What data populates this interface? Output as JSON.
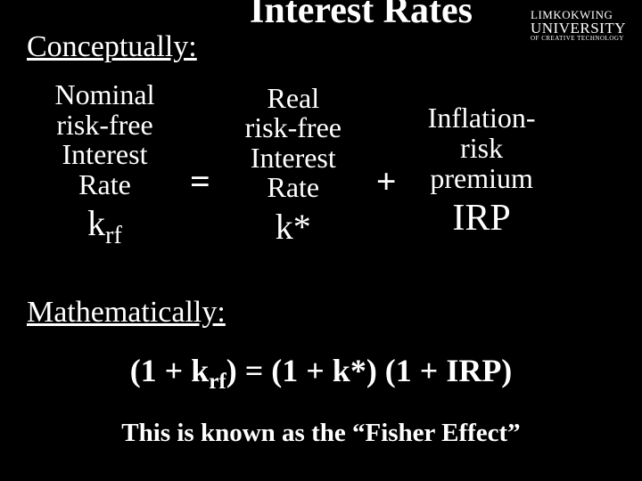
{
  "title": {
    "text": "Interest Rates",
    "fontsize": 42,
    "color": "#ffffff"
  },
  "logo": {
    "line1": "LIMKOKWING",
    "line1_fontsize": 13,
    "line2": "UNIVERSITY",
    "line2_fontsize": 17,
    "line3": "OF CREATIVE TECHNOLOGY",
    "line3_fontsize": 7,
    "color": "#ffffff"
  },
  "conceptually": {
    "text": "Conceptually:",
    "fontsize": 34,
    "color": "#ffffff"
  },
  "equation": {
    "nominal": {
      "l1": "Nominal",
      "l2": "risk-free",
      "l3": "Interest",
      "l4": "Rate",
      "symbol_prefix": "k",
      "symbol_sub": "rf",
      "fontsize": 32,
      "symbol_fontsize": 40
    },
    "equals": "=",
    "real": {
      "l1": "Real",
      "l2": "risk-free",
      "l3": "Interest",
      "l4": "Rate",
      "symbol": "k*",
      "fontsize": 32,
      "symbol_fontsize": 40
    },
    "plus": "+",
    "irp": {
      "l1": "Inflation-",
      "l2": "risk",
      "l3": "premium",
      "symbol": "IRP",
      "fontsize": 32,
      "symbol_fontsize": 42
    },
    "operator_fontsize": 40
  },
  "mathematically": {
    "text": "Mathematically:",
    "fontsize": 34,
    "color": "#ffffff"
  },
  "formula": {
    "prefix": "(1 + k",
    "sub": "rf",
    "suffix": ") = (1 + k*) (1 + IRP)",
    "fontsize": 36
  },
  "fisher": {
    "text": "This is known as the “Fisher Effect”",
    "fontsize": 29
  }
}
